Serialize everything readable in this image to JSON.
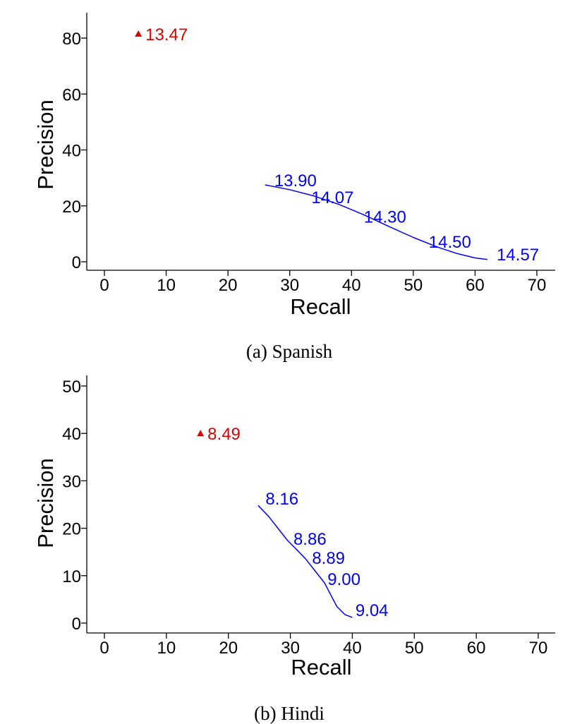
{
  "chart_data": [
    {
      "type": "line",
      "caption": "(a) Spanish",
      "xlabel": "Recall",
      "ylabel": "Precision",
      "xlim": [
        0,
        70
      ],
      "ylim": [
        0,
        80
      ],
      "xticks": [
        "0",
        "10",
        "20",
        "30",
        "40",
        "50",
        "60",
        "70"
      ],
      "yticks": [
        "0",
        "20",
        "40",
        "60",
        "80"
      ],
      "grid": false,
      "legend": "none",
      "line_color": "#0000ff",
      "point_color": "#dd0000",
      "line_values": [
        {
          "x": 26.0,
          "y": 27.5
        },
        {
          "x": 30.0,
          "y": 25.8
        },
        {
          "x": 34.0,
          "y": 23.5
        },
        {
          "x": 38.0,
          "y": 20.5
        },
        {
          "x": 42.0,
          "y": 16.8
        },
        {
          "x": 46.0,
          "y": 12.7
        },
        {
          "x": 50.0,
          "y": 8.7
        },
        {
          "x": 54.0,
          "y": 5.2
        },
        {
          "x": 57.0,
          "y": 3.0
        },
        {
          "x": 60.0,
          "y": 1.4
        },
        {
          "x": 62.0,
          "y": 0.8
        }
      ],
      "line_labels": [
        {
          "x": 27.5,
          "y": 27.0,
          "text": "13.90"
        },
        {
          "x": 33.5,
          "y": 21.0,
          "text": "14.07"
        },
        {
          "x": 42.0,
          "y": 14.0,
          "text": "14.30"
        },
        {
          "x": 52.5,
          "y": 5.0,
          "text": "14.50"
        },
        {
          "x": 63.5,
          "y": 0.5,
          "text": "14.57"
        }
      ],
      "point": {
        "x": 5.5,
        "y": 81.5,
        "text": "13.47",
        "marker": "triangle"
      }
    },
    {
      "type": "line",
      "caption": "(b) Hindi",
      "xlabel": "Recall",
      "ylabel": "Precision",
      "xlim": [
        0,
        70
      ],
      "ylim": [
        0,
        50
      ],
      "xticks": [
        "0",
        "10",
        "20",
        "30",
        "40",
        "50",
        "60",
        "70"
      ],
      "yticks": [
        "0",
        "10",
        "20",
        "30",
        "40",
        "50"
      ],
      "grid": false,
      "legend": "none",
      "line_color": "#0000ff",
      "point_color": "#dd0000",
      "line_values": [
        {
          "x": 24.8,
          "y": 24.8
        },
        {
          "x": 26.5,
          "y": 22.5
        },
        {
          "x": 28.0,
          "y": 20.0
        },
        {
          "x": 29.5,
          "y": 17.5
        },
        {
          "x": 31.0,
          "y": 15.5
        },
        {
          "x": 32.5,
          "y": 13.5
        },
        {
          "x": 34.0,
          "y": 11.0
        },
        {
          "x": 35.5,
          "y": 8.5
        },
        {
          "x": 36.5,
          "y": 6.0
        },
        {
          "x": 37.5,
          "y": 3.5
        },
        {
          "x": 38.8,
          "y": 1.8
        },
        {
          "x": 40.0,
          "y": 1.2
        }
      ],
      "line_labels": [
        {
          "x": 26.0,
          "y": 25.0,
          "text": "8.16"
        },
        {
          "x": 30.5,
          "y": 16.5,
          "text": "8.86"
        },
        {
          "x": 33.5,
          "y": 12.5,
          "text": "8.89"
        },
        {
          "x": 36.0,
          "y": 8.0,
          "text": "9.00"
        },
        {
          "x": 40.5,
          "y": 1.5,
          "text": "9.04"
        }
      ],
      "point": {
        "x": 15.5,
        "y": 40.0,
        "text": "8.49",
        "marker": "triangle"
      }
    }
  ]
}
